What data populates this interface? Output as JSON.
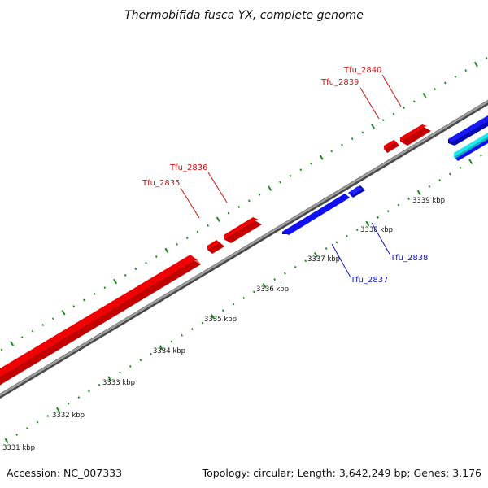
{
  "title": "Thermobifida fusca YX, complete genome",
  "footer": {
    "accession": "Accession: NC_007333",
    "stats": "Topology: circular; Length: 3,642,249 bp; Genes: 3,176"
  },
  "colors": {
    "forward_gene": "#f00000",
    "reverse_gene": "#1010f0",
    "cyan_feature": "#20e8f0",
    "backbone": "#8c8c8c",
    "tick": "#1c8c1c",
    "forward_label": "#d01010",
    "reverse_label": "#1010c0"
  },
  "scale_labels": [
    "3331 kbp",
    "3332 kbp",
    "3333 kbp",
    "3334 kbp",
    "3335 kbp",
    "3336 kbp",
    "3337 kbp",
    "3338 kbp",
    "3339 kbp"
  ],
  "genes": [
    {
      "name": "Tfu_2835",
      "strand": "+"
    },
    {
      "name": "Tfu_2836",
      "strand": "+"
    },
    {
      "name": "Tfu_2837",
      "strand": "-"
    },
    {
      "name": "Tfu_2838",
      "strand": "-"
    },
    {
      "name": "Tfu_2839",
      "strand": "+"
    },
    {
      "name": "Tfu_2840",
      "strand": "+"
    }
  ]
}
